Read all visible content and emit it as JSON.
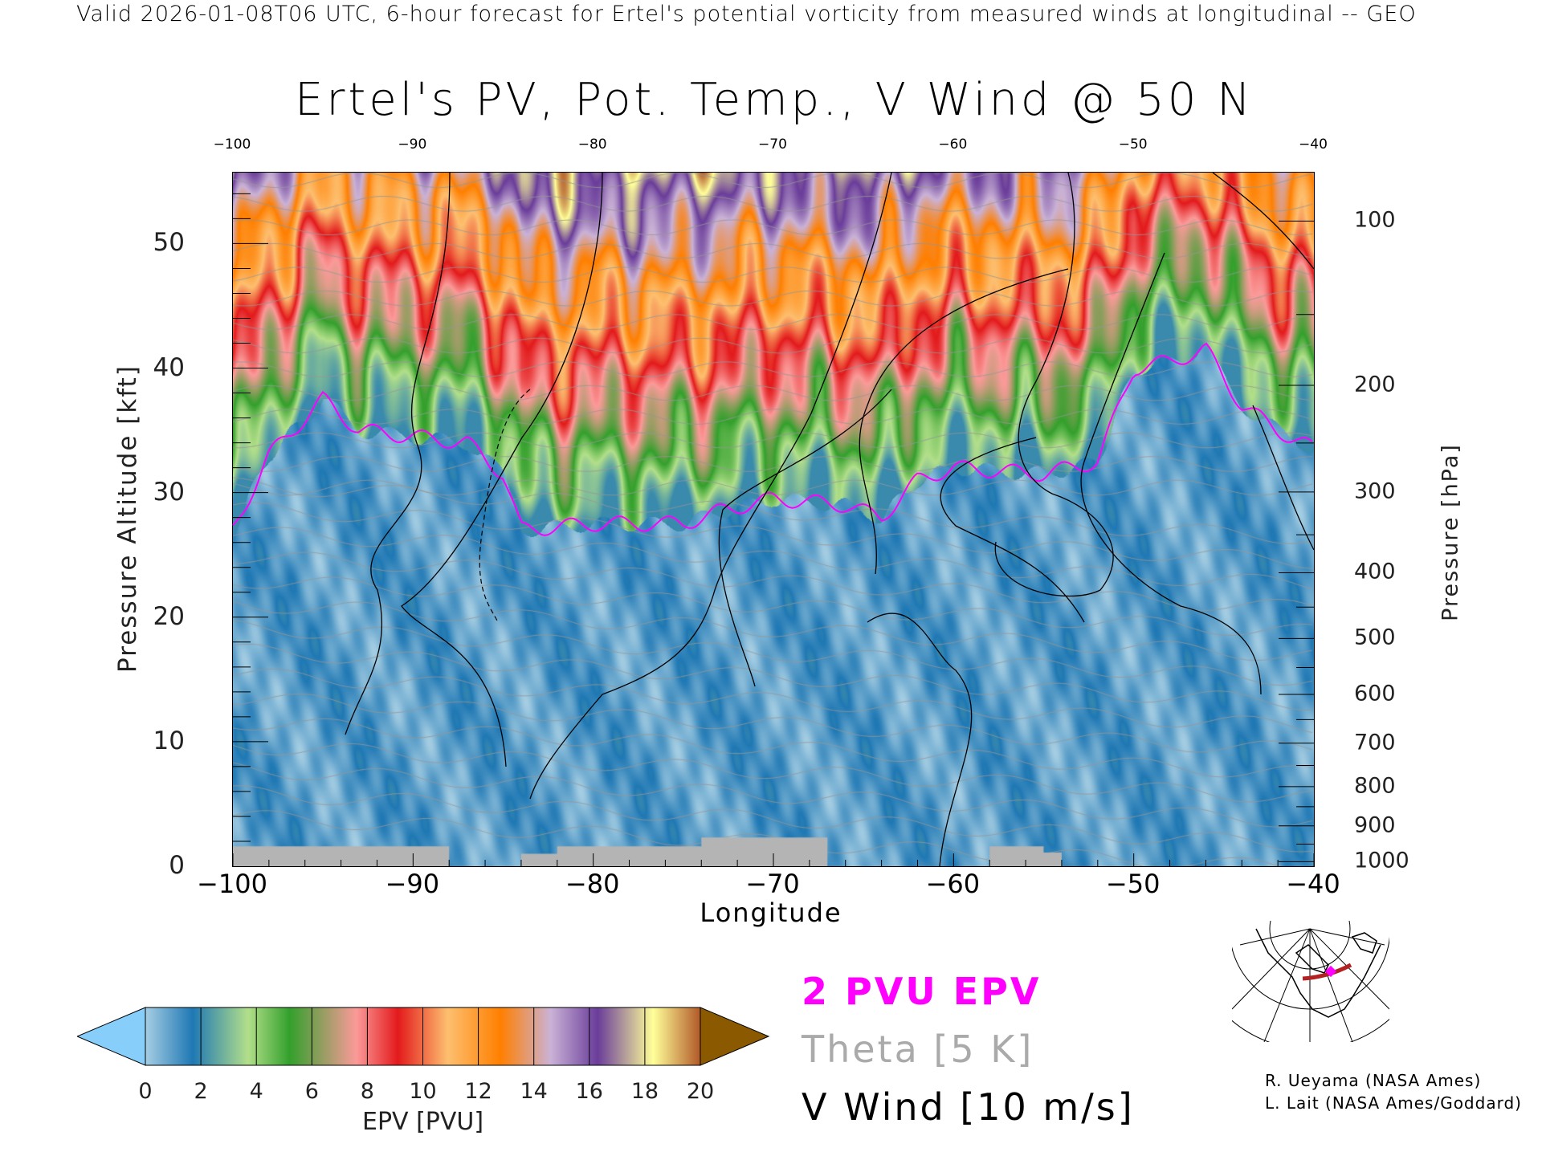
{
  "header": "Valid 2026-01-08T06 UTC, 6-hour forecast for Ertel's potential vorticity from measured winds at longitudinal -- GEO",
  "chart_data": {
    "type": "heatmap",
    "title": "Ertel's PV, Pot. Temp., V Wind @ 50 N",
    "xlabel": "Longitude",
    "ylabel_left": "Pressure Altitude [kft]",
    "ylabel_right": "Pressure [hPa]",
    "xlim": [
      -100,
      -40
    ],
    "ylim_kft": [
      0,
      55.7
    ],
    "x_ticks": [
      -100,
      -90,
      -80,
      -70,
      -60,
      -50,
      -40
    ],
    "x_tick_labels": [
      "−100",
      "−90",
      "−80",
      "−70",
      "−60",
      "−50",
      "−40"
    ],
    "y_ticks_kft": [
      0,
      10,
      20,
      30,
      40,
      50
    ],
    "y_tick_labels": [
      "0",
      "10",
      "20",
      "30",
      "40",
      "50"
    ],
    "pressure_ticks_hpa": [
      100,
      200,
      300,
      400,
      500,
      600,
      700,
      800,
      900,
      1000
    ],
    "pressure_tick_labels": [
      "100",
      "200",
      "300",
      "400",
      "500",
      "600",
      "700",
      "800",
      "900",
      "1000"
    ],
    "colorbar": {
      "label": "EPV [PVU]",
      "ticks": [
        0,
        2,
        4,
        6,
        8,
        10,
        12,
        14,
        16,
        18,
        20
      ],
      "tick_labels": [
        "0",
        "2",
        "4",
        "6",
        "8",
        "10",
        "12",
        "14",
        "16",
        "18",
        "20"
      ],
      "stops": [
        [
          0,
          "#a6cee3"
        ],
        [
          1.7,
          "#1f78b4"
        ],
        [
          3.7,
          "#b2df8a"
        ],
        [
          5.2,
          "#33a02c"
        ],
        [
          7.6,
          "#fb9a99"
        ],
        [
          9.1,
          "#e31a1c"
        ],
        [
          10.9,
          "#fdbf6f"
        ],
        [
          12.8,
          "#ff7f00"
        ],
        [
          14.6,
          "#cab2d6"
        ],
        [
          16.3,
          "#6a3d9a"
        ],
        [
          18.3,
          "#ffff99"
        ],
        [
          20,
          "#b15928"
        ]
      ],
      "under_color": "#87cefa",
      "over_color": "#8b5a00"
    },
    "tropopause_2pvu": {
      "lon": [
        -100,
        -98,
        -95,
        -93,
        -90,
        -87,
        -85,
        -84,
        -80,
        -75,
        -73,
        -70,
        -66,
        -64,
        -62,
        -60,
        -55,
        -52,
        -50,
        -48,
        -46,
        -44,
        -42,
        -40
      ],
      "kft": [
        27,
        33,
        37.5,
        35,
        34.5,
        34,
        31.5,
        27,
        27.5,
        27.5,
        28.5,
        29.5,
        29,
        28,
        31,
        32,
        31.5,
        32.5,
        40,
        40.5,
        41.5,
        37,
        35,
        33.5
      ]
    },
    "terrain_kft": {
      "lon": [
        -100,
        -89,
        -88,
        -84,
        -82,
        -80,
        -74,
        -68,
        -67,
        -58,
        -55,
        -54
      ],
      "kft": [
        1.6,
        1.6,
        0,
        1,
        1.6,
        1.6,
        2.3,
        2.3,
        0,
        1.6,
        1.1,
        0
      ]
    },
    "legend": [
      {
        "label": "2 PVU EPV",
        "color": "#ff00ff"
      },
      {
        "label": "Theta [5 K]",
        "color": "#aaaaaa"
      },
      {
        "label": "V Wind [10 m/s]",
        "color": "#000000"
      }
    ]
  },
  "credits": [
    "R. Ueyama (NASA Ames)",
    "L. Lait (NASA Ames/Goddard)"
  ]
}
